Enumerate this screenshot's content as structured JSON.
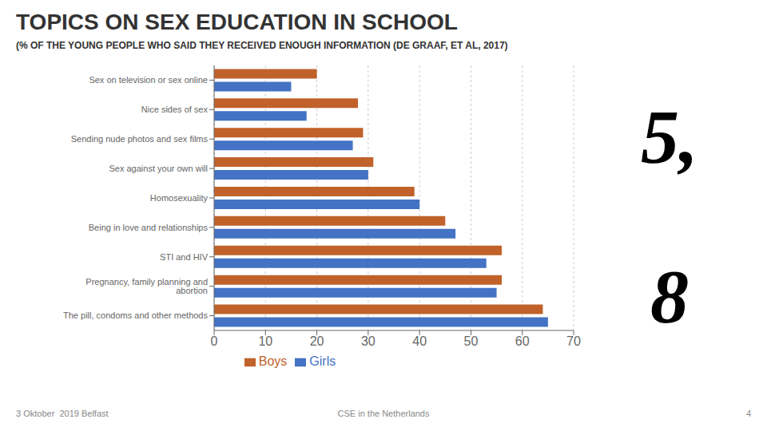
{
  "chart_data": {
    "type": "bar",
    "orientation": "horizontal",
    "title": "TOPICS ON SEX EDUCATION IN SCHOOL",
    "subtitle": "(% OF THE YOUNG PEOPLE WHO SAID THEY RECEIVED ENOUGH INFORMATION (DE GRAAF, ET AL, 2017)",
    "annotations": [
      "5,",
      "8",
      "3 Oktober  2019 Belfast",
      "CSE in the Netherlands",
      "4"
    ],
    "categories": [
      "Sex on television or sex online",
      "Nice sides of sex",
      "Sending nude photos and sex films",
      "Sex against your own will",
      "Homosexuality",
      "Being in love and relationships",
      "STI and HIV",
      "Pregnancy, family planning and abortion",
      "The pill, condoms and other methods"
    ],
    "series": [
      {
        "name": "Boys",
        "color": "#C0622A",
        "values": [
          20,
          28,
          29,
          31,
          39,
          45,
          56,
          56,
          64
        ]
      },
      {
        "name": "Girls",
        "color": "#4472C4",
        "values": [
          15,
          18,
          27,
          30,
          40,
          47,
          53,
          55,
          65
        ]
      }
    ],
    "xlim": [
      0,
      70
    ],
    "xticks": [
      0,
      10,
      20,
      30,
      40,
      50,
      60,
      70
    ],
    "grid": true,
    "legend": "bottom"
  }
}
